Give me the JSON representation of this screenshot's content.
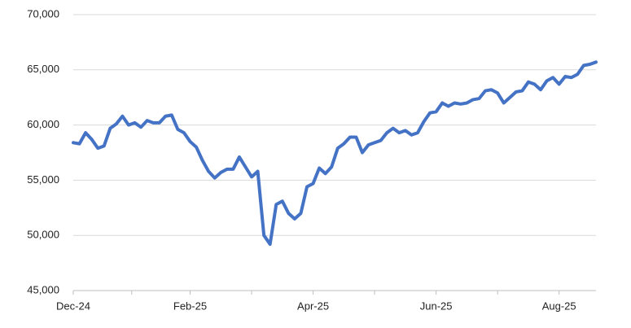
{
  "chart_data": {
    "type": "line",
    "categories": [
      "Dec-24",
      null,
      null,
      null,
      null,
      null,
      null,
      null,
      null,
      null,
      null,
      null,
      null,
      null,
      null,
      null,
      null,
      null,
      null,
      "Feb-25",
      null,
      null,
      null,
      null,
      null,
      null,
      null,
      null,
      null,
      null,
      null,
      null,
      null,
      null,
      null,
      null,
      null,
      null,
      null,
      "Apr-25",
      null,
      null,
      null,
      null,
      null,
      null,
      null,
      null,
      null,
      null,
      null,
      null,
      null,
      null,
      null,
      null,
      null,
      null,
      null,
      "Jun-25",
      null,
      null,
      null,
      null,
      null,
      null,
      null,
      null,
      null,
      null,
      null,
      null,
      null,
      null,
      null,
      null,
      null,
      null,
      null,
      "Aug-25",
      null,
      null,
      null,
      null,
      null,
      null
    ],
    "series": [
      {
        "color": "#4472c4",
        "values": [
          58400,
          58300,
          59300,
          58700,
          57900,
          58100,
          59700,
          60100,
          60800,
          60000,
          60200,
          59800,
          60400,
          60200,
          60200,
          60800,
          60900,
          59600,
          59300,
          58500,
          58000,
          56800,
          55800,
          55200,
          55700,
          56000,
          56000,
          57100,
          56200,
          55300,
          55800,
          50000,
          49200,
          52800,
          53100,
          52000,
          51500,
          52000,
          54400,
          54700,
          56100,
          55600,
          56200,
          57900,
          58300,
          58900,
          58900,
          57500,
          58200,
          58400,
          58600,
          59300,
          59700,
          59300,
          59500,
          59100,
          59300,
          60300,
          61100,
          61200,
          62000,
          61700,
          62000,
          61900,
          62000,
          62300,
          62400,
          63100,
          63200,
          62900,
          62000,
          62500,
          63000,
          63100,
          63900,
          63700,
          63200,
          64000,
          64300,
          63700,
          64400,
          64300,
          64600,
          65400,
          65500,
          65700
        ]
      }
    ],
    "ylim": [
      45000,
      70000
    ],
    "yticks": [
      {
        "value": 45000,
        "label": "45,000"
      },
      {
        "value": 50000,
        "label": "50,000"
      },
      {
        "value": 55000,
        "label": "55,000"
      },
      {
        "value": 60000,
        "label": "60,000"
      },
      {
        "value": 65000,
        "label": "65,000"
      },
      {
        "value": 70000,
        "label": "70,000"
      }
    ],
    "grid": true
  }
}
